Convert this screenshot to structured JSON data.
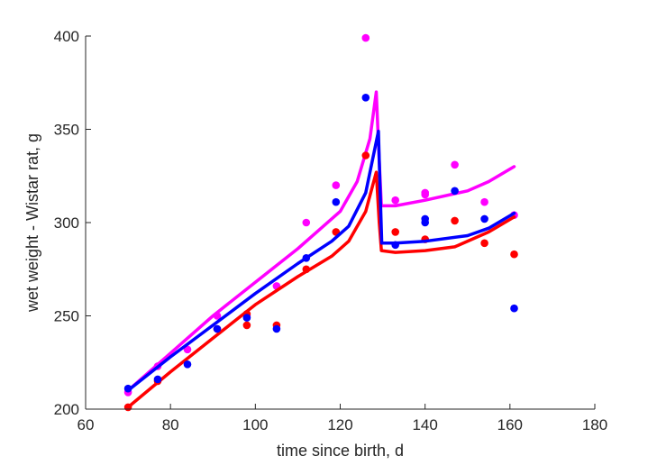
{
  "chart_data": {
    "type": "scatter",
    "xlabel": "time since birth, d",
    "ylabel": "wet weight - Wistar rat, g",
    "xlim": [
      60,
      180
    ],
    "ylim": [
      200,
      400
    ],
    "xticks": [
      60,
      80,
      100,
      120,
      140,
      160,
      180
    ],
    "yticks": [
      200,
      250,
      300,
      350,
      400
    ],
    "xtick_labels": [
      "60",
      "80",
      "100",
      "120",
      "140",
      "160",
      "180"
    ],
    "ytick_labels": [
      "200",
      "250",
      "300",
      "350",
      "400"
    ],
    "grid": false,
    "series": [
      {
        "color": "#ff00ff",
        "points": [
          [
            70,
            209
          ],
          [
            77,
            223
          ],
          [
            84,
            232
          ],
          [
            91,
            250
          ],
          [
            98,
            250
          ],
          [
            105,
            266
          ],
          [
            112,
            300
          ],
          [
            119,
            320
          ],
          [
            126,
            399
          ],
          [
            133,
            312
          ],
          [
            140,
            316
          ],
          [
            140,
            315
          ],
          [
            147,
            331
          ],
          [
            154,
            311
          ],
          [
            161,
            304
          ]
        ],
        "curve": [
          [
            70,
            210
          ],
          [
            80,
            230
          ],
          [
            90,
            250
          ],
          [
            100,
            268
          ],
          [
            110,
            286
          ],
          [
            120,
            306
          ],
          [
            124,
            322
          ],
          [
            127,
            345
          ],
          [
            128.5,
            370
          ],
          [
            129.2,
            333
          ],
          [
            129.7,
            309
          ],
          [
            133,
            309
          ],
          [
            140,
            312
          ],
          [
            150,
            317
          ],
          [
            155,
            322
          ],
          [
            161,
            330
          ]
        ]
      },
      {
        "color": "#ff0000",
        "points": [
          [
            70,
            201
          ],
          [
            77,
            215
          ],
          [
            91,
            243
          ],
          [
            98,
            245
          ],
          [
            98,
            251
          ],
          [
            105,
            245
          ],
          [
            112,
            275
          ],
          [
            119,
            295
          ],
          [
            126,
            336
          ],
          [
            133,
            295
          ],
          [
            140,
            291
          ],
          [
            147,
            301
          ],
          [
            154,
            289
          ],
          [
            161,
            283
          ]
        ],
        "curve": [
          [
            70,
            201
          ],
          [
            80,
            220
          ],
          [
            90,
            238
          ],
          [
            100,
            256
          ],
          [
            110,
            271
          ],
          [
            118,
            282
          ],
          [
            122,
            290
          ],
          [
            126,
            306
          ],
          [
            128.5,
            327
          ],
          [
            129.2,
            300
          ],
          [
            129.7,
            285
          ],
          [
            133,
            284
          ],
          [
            140,
            285
          ],
          [
            147,
            287
          ],
          [
            155,
            295
          ],
          [
            161,
            303
          ]
        ]
      },
      {
        "color": "#0000ff",
        "points": [
          [
            70,
            211
          ],
          [
            77,
            216
          ],
          [
            84,
            224
          ],
          [
            91,
            243
          ],
          [
            98,
            249
          ],
          [
            105,
            243
          ],
          [
            112,
            281
          ],
          [
            119,
            311
          ],
          [
            126,
            367
          ],
          [
            133,
            288
          ],
          [
            140,
            302
          ],
          [
            140,
            300
          ],
          [
            147,
            317
          ],
          [
            154,
            302
          ],
          [
            161,
            254
          ]
        ],
        "curve": [
          [
            70,
            210
          ],
          [
            80,
            228
          ],
          [
            90,
            245
          ],
          [
            100,
            262
          ],
          [
            110,
            278
          ],
          [
            118,
            290
          ],
          [
            122,
            298
          ],
          [
            126,
            316
          ],
          [
            129,
            349
          ],
          [
            129.4,
            317
          ],
          [
            129.8,
            289
          ],
          [
            133,
            289
          ],
          [
            140,
            290
          ],
          [
            150,
            293
          ],
          [
            155,
            297
          ],
          [
            161,
            305
          ]
        ]
      }
    ]
  }
}
